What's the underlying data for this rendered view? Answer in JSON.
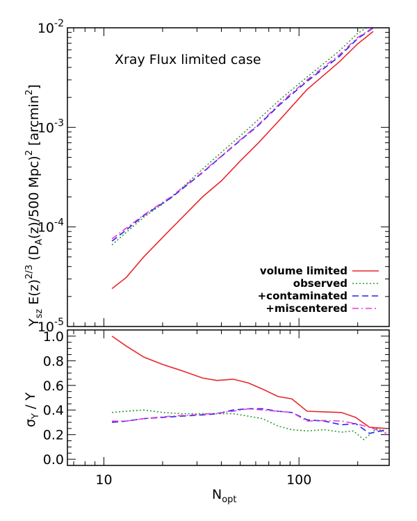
{
  "chart_data": [
    {
      "type": "line",
      "panel": "top",
      "annotation": "Xray Flux limited case",
      "ylabel_parts": {
        "y": "Y",
        "y_sub": "sz",
        "e": "E(z)",
        "e_sup": "2/3",
        "d_open": "(D",
        "d_sub": "A",
        "d_mid": "(z)/500 Mpc)",
        "d_sup": "2",
        "unit_open": "[arcmin",
        "unit_sup": "2",
        "unit_close": "]"
      },
      "xscale": "log",
      "yscale": "log",
      "xlim": [
        6.5,
        290
      ],
      "ylim": [
        1e-05,
        0.01
      ],
      "yticks": [
        {
          "value": 1e-05,
          "base": "10",
          "exp": "-5"
        },
        {
          "value": 0.0001,
          "base": "10",
          "exp": "-4"
        },
        {
          "value": 0.001,
          "base": "10",
          "exp": "-3"
        },
        {
          "value": 0.01,
          "base": "10",
          "exp": "-2"
        }
      ],
      "legend_placement": "bottom-right",
      "series": [
        {
          "name": "volume limited",
          "color": "#e8262b",
          "dash": "solid",
          "x": [
            11,
            13,
            16,
            22,
            32,
            40,
            50,
            62,
            80,
            110,
            160,
            200,
            240
          ],
          "y": [
            2.4e-05,
            3.1e-05,
            5e-05,
            9.5e-05,
            0.0002,
            0.00029,
            0.00046,
            0.0007,
            0.0012,
            0.0024,
            0.0045,
            0.0069,
            0.0092
          ]
        },
        {
          "name": "observed",
          "color": "#2a9a2a",
          "dash": "dot",
          "x": [
            11,
            13,
            16,
            22,
            32,
            40,
            50,
            62,
            80,
            110,
            160,
            200,
            230
          ],
          "y": [
            6.6e-05,
            8.8e-05,
            0.000125,
            0.000195,
            0.00038,
            0.00056,
            0.00082,
            0.0012,
            0.0019,
            0.0032,
            0.0058,
            0.0088,
            0.0105
          ]
        },
        {
          "name": "+contaminated",
          "color": "#2323e6",
          "dash": "dash",
          "x": [
            11,
            13,
            16,
            22,
            32,
            40,
            50,
            62,
            80,
            110,
            160,
            200,
            250
          ],
          "y": [
            7.2e-05,
            9.3e-05,
            0.00013,
            0.000195,
            0.00035,
            0.00051,
            0.00074,
            0.00105,
            0.0017,
            0.0029,
            0.0051,
            0.0078,
            0.0105
          ]
        },
        {
          "name": "+miscentered",
          "color": "#e23ce2",
          "dash": "dashdot",
          "x": [
            11,
            13,
            16,
            22,
            32,
            40,
            50,
            62,
            80,
            110,
            160,
            200,
            250
          ],
          "y": [
            7.6e-05,
            9.7e-05,
            0.000132,
            0.0002,
            0.000355,
            0.000515,
            0.00075,
            0.00107,
            0.00175,
            0.003,
            0.0053,
            0.008,
            0.0106
          ]
        }
      ]
    },
    {
      "type": "line",
      "panel": "bottom",
      "xlabel": "N",
      "xlabel_sub": "opt",
      "ylabel_parts": {
        "sigma": "σ",
        "sigma_sub": "Y",
        "rest": " / Y"
      },
      "xscale": "log",
      "xlim": [
        6.5,
        290
      ],
      "ylim": [
        -0.05,
        1.05
      ],
      "yticks": [
        "0.0",
        "0.2",
        "0.4",
        "0.6",
        "0.8",
        "1.0"
      ],
      "xticks": [
        {
          "value": 10,
          "label": "10"
        },
        {
          "value": 100,
          "label": "100"
        }
      ],
      "series": [
        {
          "name": "volume limited",
          "color": "#e8262b",
          "dash": "solid",
          "x": [
            11,
            13,
            16,
            20,
            25,
            32,
            38,
            46,
            55,
            65,
            78,
            92,
            110,
            135,
            165,
            195,
            230,
            280
          ],
          "y": [
            1.0,
            0.92,
            0.83,
            0.77,
            0.72,
            0.66,
            0.64,
            0.65,
            0.62,
            0.57,
            0.51,
            0.49,
            0.39,
            0.385,
            0.38,
            0.34,
            0.26,
            0.25
          ]
        },
        {
          "name": "observed",
          "color": "#2a9a2a",
          "dash": "dot",
          "x": [
            11,
            13,
            16,
            20,
            25,
            32,
            38,
            46,
            55,
            65,
            78,
            92,
            110,
            135,
            165,
            190,
            215,
            250,
            280
          ],
          "y": [
            0.38,
            0.39,
            0.4,
            0.38,
            0.37,
            0.37,
            0.37,
            0.37,
            0.35,
            0.33,
            0.27,
            0.24,
            0.23,
            0.24,
            0.22,
            0.23,
            0.16,
            0.25,
            0.22
          ]
        },
        {
          "name": "+contaminated",
          "color": "#2323e6",
          "dash": "dash",
          "x": [
            11,
            13,
            16,
            20,
            25,
            32,
            38,
            46,
            55,
            65,
            78,
            92,
            110,
            135,
            165,
            195,
            230,
            280
          ],
          "y": [
            0.3,
            0.31,
            0.33,
            0.34,
            0.35,
            0.36,
            0.37,
            0.4,
            0.41,
            0.41,
            0.39,
            0.38,
            0.32,
            0.31,
            0.28,
            0.29,
            0.21,
            0.24
          ]
        },
        {
          "name": "+miscentered",
          "color": "#e23ce2",
          "dash": "dashdot",
          "x": [
            11,
            13,
            16,
            20,
            25,
            32,
            38,
            46,
            55,
            65,
            78,
            92,
            110,
            135,
            165,
            195,
            230,
            280
          ],
          "y": [
            0.31,
            0.31,
            0.33,
            0.345,
            0.355,
            0.365,
            0.375,
            0.39,
            0.41,
            0.4,
            0.39,
            0.38,
            0.31,
            0.315,
            0.31,
            0.29,
            0.26,
            0.21
          ]
        }
      ]
    }
  ]
}
